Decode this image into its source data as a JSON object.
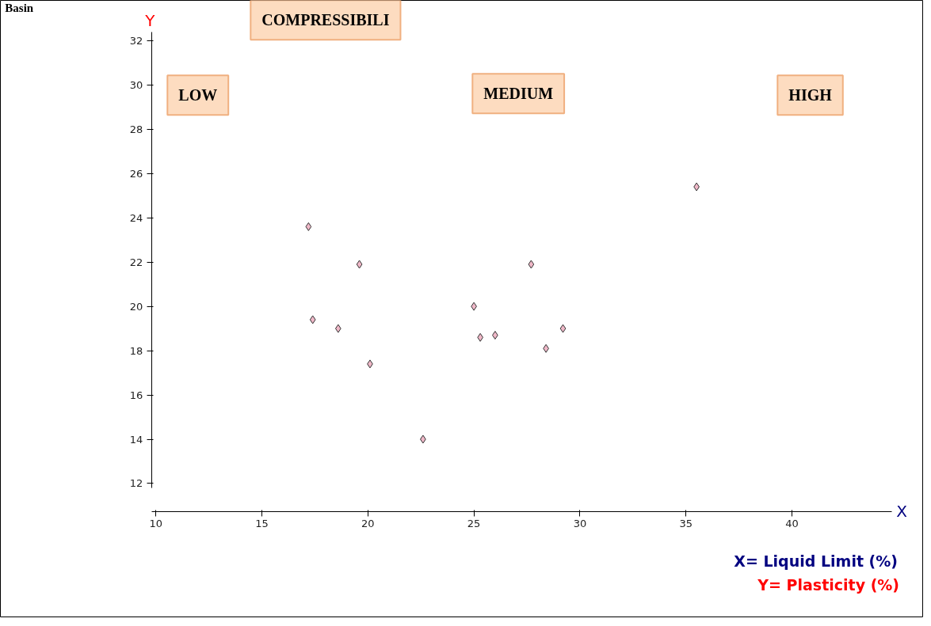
{
  "chart_data": {
    "type": "scatter",
    "xlabel": "X",
    "ylabel": "Y",
    "x": [
      17.2,
      17.4,
      19.6,
      18.6,
      20.1,
      22.6,
      25.0,
      25.3,
      26.0,
      27.7,
      28.4,
      29.2,
      35.5
    ],
    "values": [
      23.6,
      19.4,
      21.9,
      19.0,
      17.4,
      14.0,
      20.0,
      18.6,
      18.7,
      21.9,
      18.1,
      19.0,
      25.4
    ],
    "color": "#f0b8c8",
    "marker": "diamond",
    "xlim": [
      9.8,
      44.7
    ],
    "ylim": [
      11.8,
      32.4
    ],
    "xticks": [
      10,
      15,
      20,
      25,
      30,
      35,
      40
    ],
    "yticks": [
      12,
      14,
      16,
      18,
      20,
      22,
      24,
      26,
      28,
      30,
      32
    ],
    "grid": false,
    "annotations": [
      "Basin",
      "COMPRESSIBILI",
      "LOW",
      "MEDIUM",
      "HIGH",
      "X= Liquid Limit (%)",
      "Y= Plasticity (%)"
    ]
  }
}
